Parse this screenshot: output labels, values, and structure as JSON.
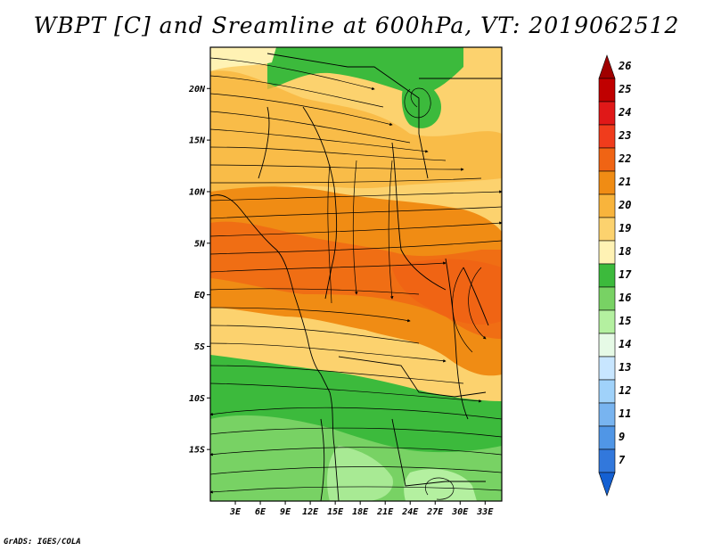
{
  "title": "WBPT [C] and Sreamline at 600hPa, VT: 2019062512",
  "footer": "GrADS: IGES/COLA",
  "map": {
    "lon_range": [
      0,
      35
    ],
    "lat_range": [
      -20,
      24
    ],
    "lat_ticks": [
      {
        "value": 20,
        "label": "20N"
      },
      {
        "value": 15,
        "label": "15N"
      },
      {
        "value": 10,
        "label": "10N"
      },
      {
        "value": 5,
        "label": "5N"
      },
      {
        "value": 0,
        "label": "EQ"
      },
      {
        "value": -5,
        "label": "5S"
      },
      {
        "value": -10,
        "label": "10S"
      },
      {
        "value": -15,
        "label": "15S"
      }
    ],
    "lon_ticks": [
      {
        "value": 3,
        "label": "3E"
      },
      {
        "value": 6,
        "label": "6E"
      },
      {
        "value": 9,
        "label": "9E"
      },
      {
        "value": 12,
        "label": "12E"
      },
      {
        "value": 15,
        "label": "15E"
      },
      {
        "value": 18,
        "label": "18E"
      },
      {
        "value": 21,
        "label": "21E"
      },
      {
        "value": 24,
        "label": "24E"
      },
      {
        "value": 27,
        "label": "27E"
      },
      {
        "value": 30,
        "label": "30E"
      },
      {
        "value": 33,
        "label": "33E"
      }
    ]
  },
  "colorbar": {
    "labels": [
      "26",
      "25",
      "24",
      "23",
      "22",
      "21",
      "20",
      "19",
      "18",
      "17",
      "16",
      "15",
      "14",
      "13",
      "12",
      "11",
      "9",
      "7"
    ],
    "colors": [
      "#a00000",
      "#c00000",
      "#e01818",
      "#f03c1c",
      "#f06414",
      "#f08c14",
      "#f8b43c",
      "#fcd26e",
      "#fff2b4",
      "#3cba3c",
      "#78d264",
      "#b4f0a0",
      "#e6fae6",
      "#c8e6ff",
      "#a0d2fa",
      "#78b4f0",
      "#5096e6",
      "#3278dc",
      "#1460d2"
    ]
  }
}
